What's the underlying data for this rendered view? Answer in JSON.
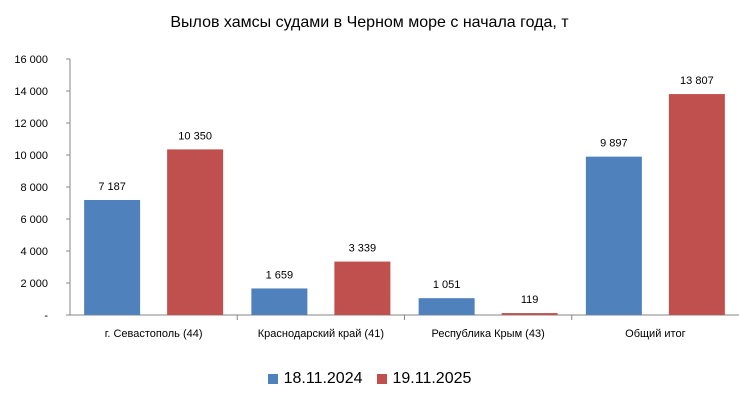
{
  "chart_data": {
    "type": "bar",
    "title": "Вылов хамсы судами в Черном море с начала  года, т",
    "categories": [
      "г. Севастополь (44)",
      "Краснодарский край (41)",
      "Республика Крым (43)",
      "Общий итог"
    ],
    "series": [
      {
        "name": "18.11.2024",
        "color": "#4f81bd",
        "values": [
          7187,
          1659,
          1051,
          9897
        ],
        "labels": [
          "7 187",
          "1 659",
          "1 051",
          "9 897"
        ]
      },
      {
        "name": "19.11.2025",
        "color": "#c0504d",
        "values": [
          10350,
          3339,
          119,
          13807
        ],
        "labels": [
          "10 350",
          "3 339",
          "119",
          "13 807"
        ]
      }
    ],
    "yticks": [
      0,
      2000,
      4000,
      6000,
      8000,
      10000,
      12000,
      14000,
      16000
    ],
    "ytick_labels": [
      "-",
      "2 000",
      "4 000",
      "6 000",
      "8 000",
      "10 000",
      "12 000",
      "14 000",
      "16 000"
    ],
    "ylim": [
      0,
      16000
    ],
    "grid": false,
    "legend": "bottom"
  }
}
